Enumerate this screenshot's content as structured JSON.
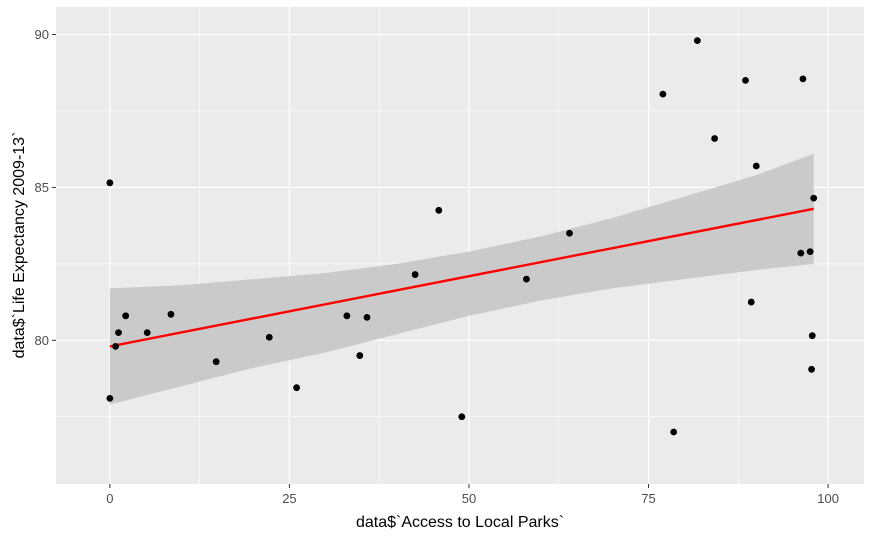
{
  "chart_data": {
    "type": "scatter",
    "title": "",
    "xlabel": "data$`Access to Local Parks`",
    "ylabel": "data$`Life Expectancy 2009-13`",
    "xlim": [
      -7.5,
      105
    ],
    "ylim": [
      75.3,
      90.9
    ],
    "x_ticks": [
      0,
      25,
      50,
      75,
      100
    ],
    "y_ticks": [
      80,
      85,
      90
    ],
    "y_minor_ticks": [
      77.5,
      82.5,
      87.5
    ],
    "x_minor_ticks": [
      12.5,
      37.5,
      62.5,
      87.5
    ],
    "grid": true,
    "colors": {
      "panel": "#ebebeb",
      "grid": "#ffffff",
      "point": "#000000",
      "fit_line": "#ff0000",
      "ribbon": "#c8c8c8"
    },
    "points": [
      {
        "x": 0.0,
        "y": 85.15
      },
      {
        "x": 0.0,
        "y": 78.1
      },
      {
        "x": 0.8,
        "y": 79.8
      },
      {
        "x": 1.2,
        "y": 80.25
      },
      {
        "x": 2.2,
        "y": 80.8
      },
      {
        "x": 5.2,
        "y": 80.25
      },
      {
        "x": 8.5,
        "y": 80.85
      },
      {
        "x": 14.8,
        "y": 79.3
      },
      {
        "x": 22.2,
        "y": 80.1
      },
      {
        "x": 26.0,
        "y": 78.45
      },
      {
        "x": 33.0,
        "y": 80.8
      },
      {
        "x": 34.8,
        "y": 79.5
      },
      {
        "x": 35.8,
        "y": 80.75
      },
      {
        "x": 42.5,
        "y": 82.15
      },
      {
        "x": 45.8,
        "y": 84.25
      },
      {
        "x": 49.0,
        "y": 77.5
      },
      {
        "x": 58.0,
        "y": 82.0
      },
      {
        "x": 64.0,
        "y": 83.5
      },
      {
        "x": 77.0,
        "y": 88.05
      },
      {
        "x": 78.5,
        "y": 77.0
      },
      {
        "x": 81.8,
        "y": 89.8
      },
      {
        "x": 84.2,
        "y": 86.6
      },
      {
        "x": 88.5,
        "y": 88.5
      },
      {
        "x": 89.3,
        "y": 81.25
      },
      {
        "x": 90.0,
        "y": 85.7
      },
      {
        "x": 96.2,
        "y": 82.85
      },
      {
        "x": 96.5,
        "y": 88.55
      },
      {
        "x": 97.5,
        "y": 82.9
      },
      {
        "x": 97.7,
        "y": 79.05
      },
      {
        "x": 97.8,
        "y": 80.15
      },
      {
        "x": 98.0,
        "y": 84.65
      }
    ],
    "fit_line": {
      "x": [
        0,
        98
      ],
      "y": [
        79.8,
        84.3
      ]
    },
    "confidence_band": {
      "x": [
        0,
        10,
        20,
        30,
        40,
        50,
        60,
        70,
        80,
        90,
        98
      ],
      "upper": [
        81.7,
        81.8,
        82.0,
        82.2,
        82.5,
        82.9,
        83.4,
        84.0,
        84.7,
        85.4,
        86.1
      ],
      "lower": [
        77.9,
        78.5,
        79.1,
        79.6,
        80.2,
        80.8,
        81.3,
        81.7,
        82.0,
        82.3,
        82.5
      ]
    }
  }
}
